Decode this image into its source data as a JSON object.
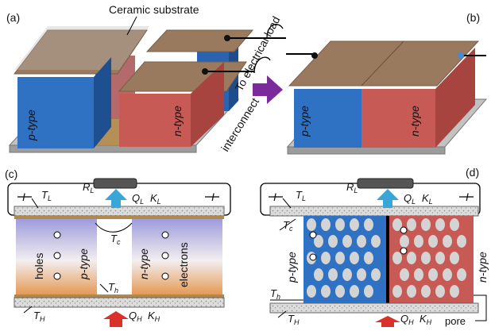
{
  "panels": {
    "a": {
      "tag": "(a)",
      "ceramic_label": "Ceramic substrate",
      "load_label": "To electrical load",
      "p_label": "p-type",
      "n_label": "n-type",
      "interconnect_label": "interconnect"
    },
    "b": {
      "tag": "(b)",
      "p_label": "p-type",
      "n_label": "n-type"
    },
    "c": {
      "tag": "(c)",
      "I_left": "I",
      "I_right": "I",
      "TL": "T",
      "TL_sub": "L",
      "RL": "R",
      "RL_sub": "L",
      "QL": "Q",
      "QL_sub": "L",
      "KL": "K",
      "KL_sub": "L",
      "Tc": "T",
      "Tc_sub": "c",
      "Th": "T",
      "Th_sub": "h",
      "TH": "T",
      "TH_sub": "H",
      "QH": "Q",
      "QH_sub": "H",
      "KH": "K",
      "KH_sub": "H",
      "holes": "holes",
      "p_label": "p-type",
      "n_label": "n-type",
      "electrons": "electrons"
    },
    "d": {
      "tag": "(d)",
      "I_left": "I",
      "I_right": "I",
      "TL": "T",
      "TL_sub": "L",
      "RL": "R",
      "RL_sub": "L",
      "QL": "Q",
      "QL_sub": "L",
      "KL": "K",
      "KL_sub": "L",
      "Tc": "T",
      "Tc_sub": "c",
      "Th": "T",
      "Th_sub": "h",
      "TH": "T",
      "TH_sub": "H",
      "QH": "Q",
      "QH_sub": "H",
      "KH": "K",
      "KH_sub": "H",
      "p_label": "p-type",
      "n_label": "n-type",
      "pore": "pore"
    }
  },
  "colors": {
    "p": "#2f72c4",
    "n": "#c85a55",
    "top": "#9a7a5e",
    "substrate": "#c9c9c9",
    "arrow_cold": "#3aa6d8",
    "arrow_hot": "#d8322a"
  }
}
